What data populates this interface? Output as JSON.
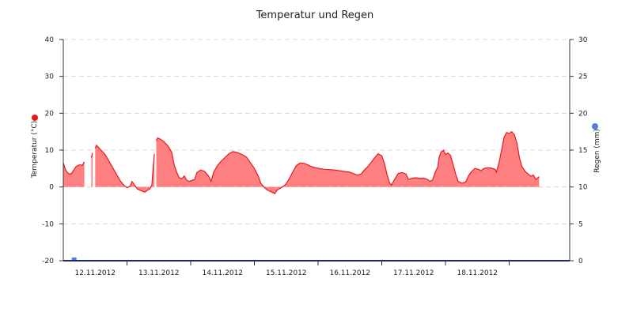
{
  "chart_data": {
    "type": "area",
    "title": "Temperatur und Regen",
    "ylabel_left": "Temperatur (°C)",
    "ylabel_right": "Regen (mm)",
    "x_unit": "days since 2012-11-11 00:00",
    "x_range": [
      11.0,
      18.95
    ],
    "x_tick_labels": [
      "12.11.2012",
      "13.11.2012",
      "14.11.2012",
      "15.11.2012",
      "16.11.2012",
      "17.11.2012",
      "18.11.2012"
    ],
    "y_left": {
      "min": -20,
      "max": 40,
      "ticks": [
        "-20",
        "-10",
        "0",
        "10",
        "20",
        "30",
        "40"
      ]
    },
    "y_right": {
      "min": 0,
      "max": 30,
      "ticks": [
        "0",
        "5",
        "10",
        "15",
        "20",
        "25",
        "30"
      ]
    },
    "grid": true,
    "legend": "none",
    "colors": {
      "temperature_line": "#e8191a",
      "temperature_fill": "#ff8080",
      "rain": "#5577e6",
      "axis": "#1a2a66",
      "grid": "#d8d8d8"
    },
    "series": [
      {
        "name": "Temperatur",
        "axis": "left",
        "segments": [
          [
            [
              11.0,
              6.5
            ],
            [
              11.04,
              4.5
            ],
            [
              11.08,
              3.6
            ],
            [
              11.12,
              3.5
            ],
            [
              11.16,
              4.5
            ],
            [
              11.2,
              5.5
            ],
            [
              11.25,
              6.0
            ],
            [
              11.3,
              5.9
            ],
            [
              11.33,
              6.8
            ]
          ],
          [
            [
              11.44,
              8.0
            ],
            [
              11.46,
              9.2
            ]
          ],
          [
            [
              11.5,
              10.5
            ],
            [
              11.52,
              11.3
            ],
            [
              11.55,
              10.8
            ],
            [
              11.58,
              10.2
            ],
            [
              11.62,
              9.5
            ],
            [
              11.66,
              8.7
            ],
            [
              11.7,
              7.5
            ],
            [
              11.75,
              6.0
            ],
            [
              11.8,
              4.5
            ],
            [
              11.85,
              3.0
            ],
            [
              11.9,
              1.5
            ],
            [
              11.95,
              0.5
            ],
            [
              12.0,
              -0.2
            ],
            [
              12.05,
              0.2
            ],
            [
              12.08,
              1.5
            ],
            [
              12.12,
              0.5
            ],
            [
              12.16,
              -0.5
            ],
            [
              12.22,
              -1.0
            ],
            [
              12.28,
              -1.4
            ],
            [
              12.32,
              -0.9
            ],
            [
              12.36,
              -0.5
            ],
            [
              12.39,
              0.5
            ],
            [
              12.41,
              5.0
            ],
            [
              12.43,
              9.0
            ]
          ],
          [
            [
              12.46,
              12.5
            ],
            [
              12.48,
              13.3
            ],
            [
              12.52,
              13.0
            ],
            [
              12.58,
              12.3
            ],
            [
              12.64,
              11.2
            ],
            [
              12.7,
              9.5
            ],
            [
              12.74,
              6.0
            ],
            [
              12.78,
              4.0
            ],
            [
              12.82,
              2.5
            ],
            [
              12.86,
              2.2
            ],
            [
              12.9,
              3.0
            ],
            [
              12.93,
              2.0
            ],
            [
              12.97,
              1.5
            ],
            [
              13.02,
              1.8
            ],
            [
              13.06,
              2.0
            ],
            [
              13.1,
              4.0
            ],
            [
              13.16,
              4.6
            ],
            [
              13.22,
              4.2
            ],
            [
              13.28,
              3.0
            ],
            [
              13.32,
              1.5
            ],
            [
              13.36,
              4.0
            ],
            [
              13.42,
              5.8
            ],
            [
              13.48,
              7.0
            ],
            [
              13.54,
              8.0
            ],
            [
              13.6,
              9.0
            ],
            [
              13.66,
              9.6
            ],
            [
              13.72,
              9.4
            ],
            [
              13.78,
              9.0
            ],
            [
              13.84,
              8.5
            ],
            [
              13.88,
              8.0
            ],
            [
              13.94,
              6.5
            ],
            [
              14.0,
              5.0
            ],
            [
              14.06,
              3.0
            ],
            [
              14.1,
              1.0
            ],
            [
              14.15,
              0.0
            ],
            [
              14.2,
              -0.8
            ],
            [
              14.26,
              -1.3
            ],
            [
              14.32,
              -1.8
            ],
            [
              14.36,
              -0.8
            ],
            [
              14.42,
              -0.2
            ],
            [
              14.48,
              0.5
            ],
            [
              14.54,
              2.0
            ],
            [
              14.6,
              4.0
            ],
            [
              14.66,
              5.8
            ],
            [
              14.72,
              6.5
            ],
            [
              14.78,
              6.4
            ],
            [
              14.84,
              6.0
            ],
            [
              14.9,
              5.5
            ],
            [
              14.96,
              5.2
            ],
            [
              15.02,
              5.0
            ],
            [
              15.1,
              4.8
            ],
            [
              15.18,
              4.7
            ],
            [
              15.26,
              4.6
            ],
            [
              15.34,
              4.4
            ],
            [
              15.42,
              4.2
            ],
            [
              15.5,
              4.0
            ],
            [
              15.56,
              3.6
            ],
            [
              15.62,
              3.2
            ],
            [
              15.68,
              3.6
            ],
            [
              15.72,
              4.5
            ],
            [
              15.78,
              5.5
            ],
            [
              15.84,
              6.8
            ],
            [
              15.9,
              8.2
            ],
            [
              15.94,
              9.0
            ],
            [
              16.0,
              8.5
            ],
            [
              16.04,
              6.5
            ],
            [
              16.08,
              3.5
            ],
            [
              16.12,
              1.2
            ],
            [
              16.15,
              0.5
            ],
            [
              16.2,
              2.0
            ],
            [
              16.26,
              3.7
            ],
            [
              16.32,
              3.9
            ],
            [
              16.38,
              3.5
            ],
            [
              16.42,
              2.0
            ],
            [
              16.48,
              2.4
            ],
            [
              16.54,
              2.5
            ],
            [
              16.6,
              2.3
            ],
            [
              16.66,
              2.4
            ],
            [
              16.72,
              2.0
            ],
            [
              16.76,
              1.5
            ],
            [
              16.8,
              2.0
            ],
            [
              16.84,
              4.0
            ],
            [
              16.88,
              5.5
            ],
            [
              16.9,
              8.0
            ],
            [
              16.93,
              9.5
            ],
            [
              16.97,
              10.0
            ],
            [
              17.0,
              8.8
            ],
            [
              17.04,
              9.2
            ],
            [
              17.08,
              8.5
            ],
            [
              17.12,
              6.0
            ],
            [
              17.16,
              3.5
            ],
            [
              17.2,
              1.5
            ],
            [
              17.26,
              1.0
            ],
            [
              17.32,
              1.4
            ],
            [
              17.36,
              3.0
            ],
            [
              17.4,
              4.0
            ],
            [
              17.46,
              5.0
            ],
            [
              17.52,
              4.8
            ],
            [
              17.56,
              4.4
            ],
            [
              17.6,
              5.0
            ],
            [
              17.66,
              5.2
            ],
            [
              17.72,
              5.1
            ],
            [
              17.78,
              4.8
            ],
            [
              17.8,
              4.0
            ],
            [
              17.84,
              6.5
            ],
            [
              17.88,
              10.0
            ],
            [
              17.92,
              13.5
            ],
            [
              17.96,
              14.8
            ],
            [
              18.0,
              14.5
            ],
            [
              18.04,
              15.0
            ],
            [
              18.08,
              14.2
            ],
            [
              18.12,
              12.0
            ],
            [
              18.16,
              8.0
            ],
            [
              18.2,
              5.5
            ],
            [
              18.26,
              4.0
            ],
            [
              18.3,
              3.5
            ],
            [
              18.34,
              2.9
            ],
            [
              18.38,
              3.2
            ],
            [
              18.42,
              2.0
            ],
            [
              18.47,
              2.8
            ]
          ]
        ]
      },
      {
        "name": "Regen",
        "axis": "right",
        "type": "bar",
        "points": [
          [
            11.17,
            0.3
          ]
        ]
      }
    ]
  }
}
